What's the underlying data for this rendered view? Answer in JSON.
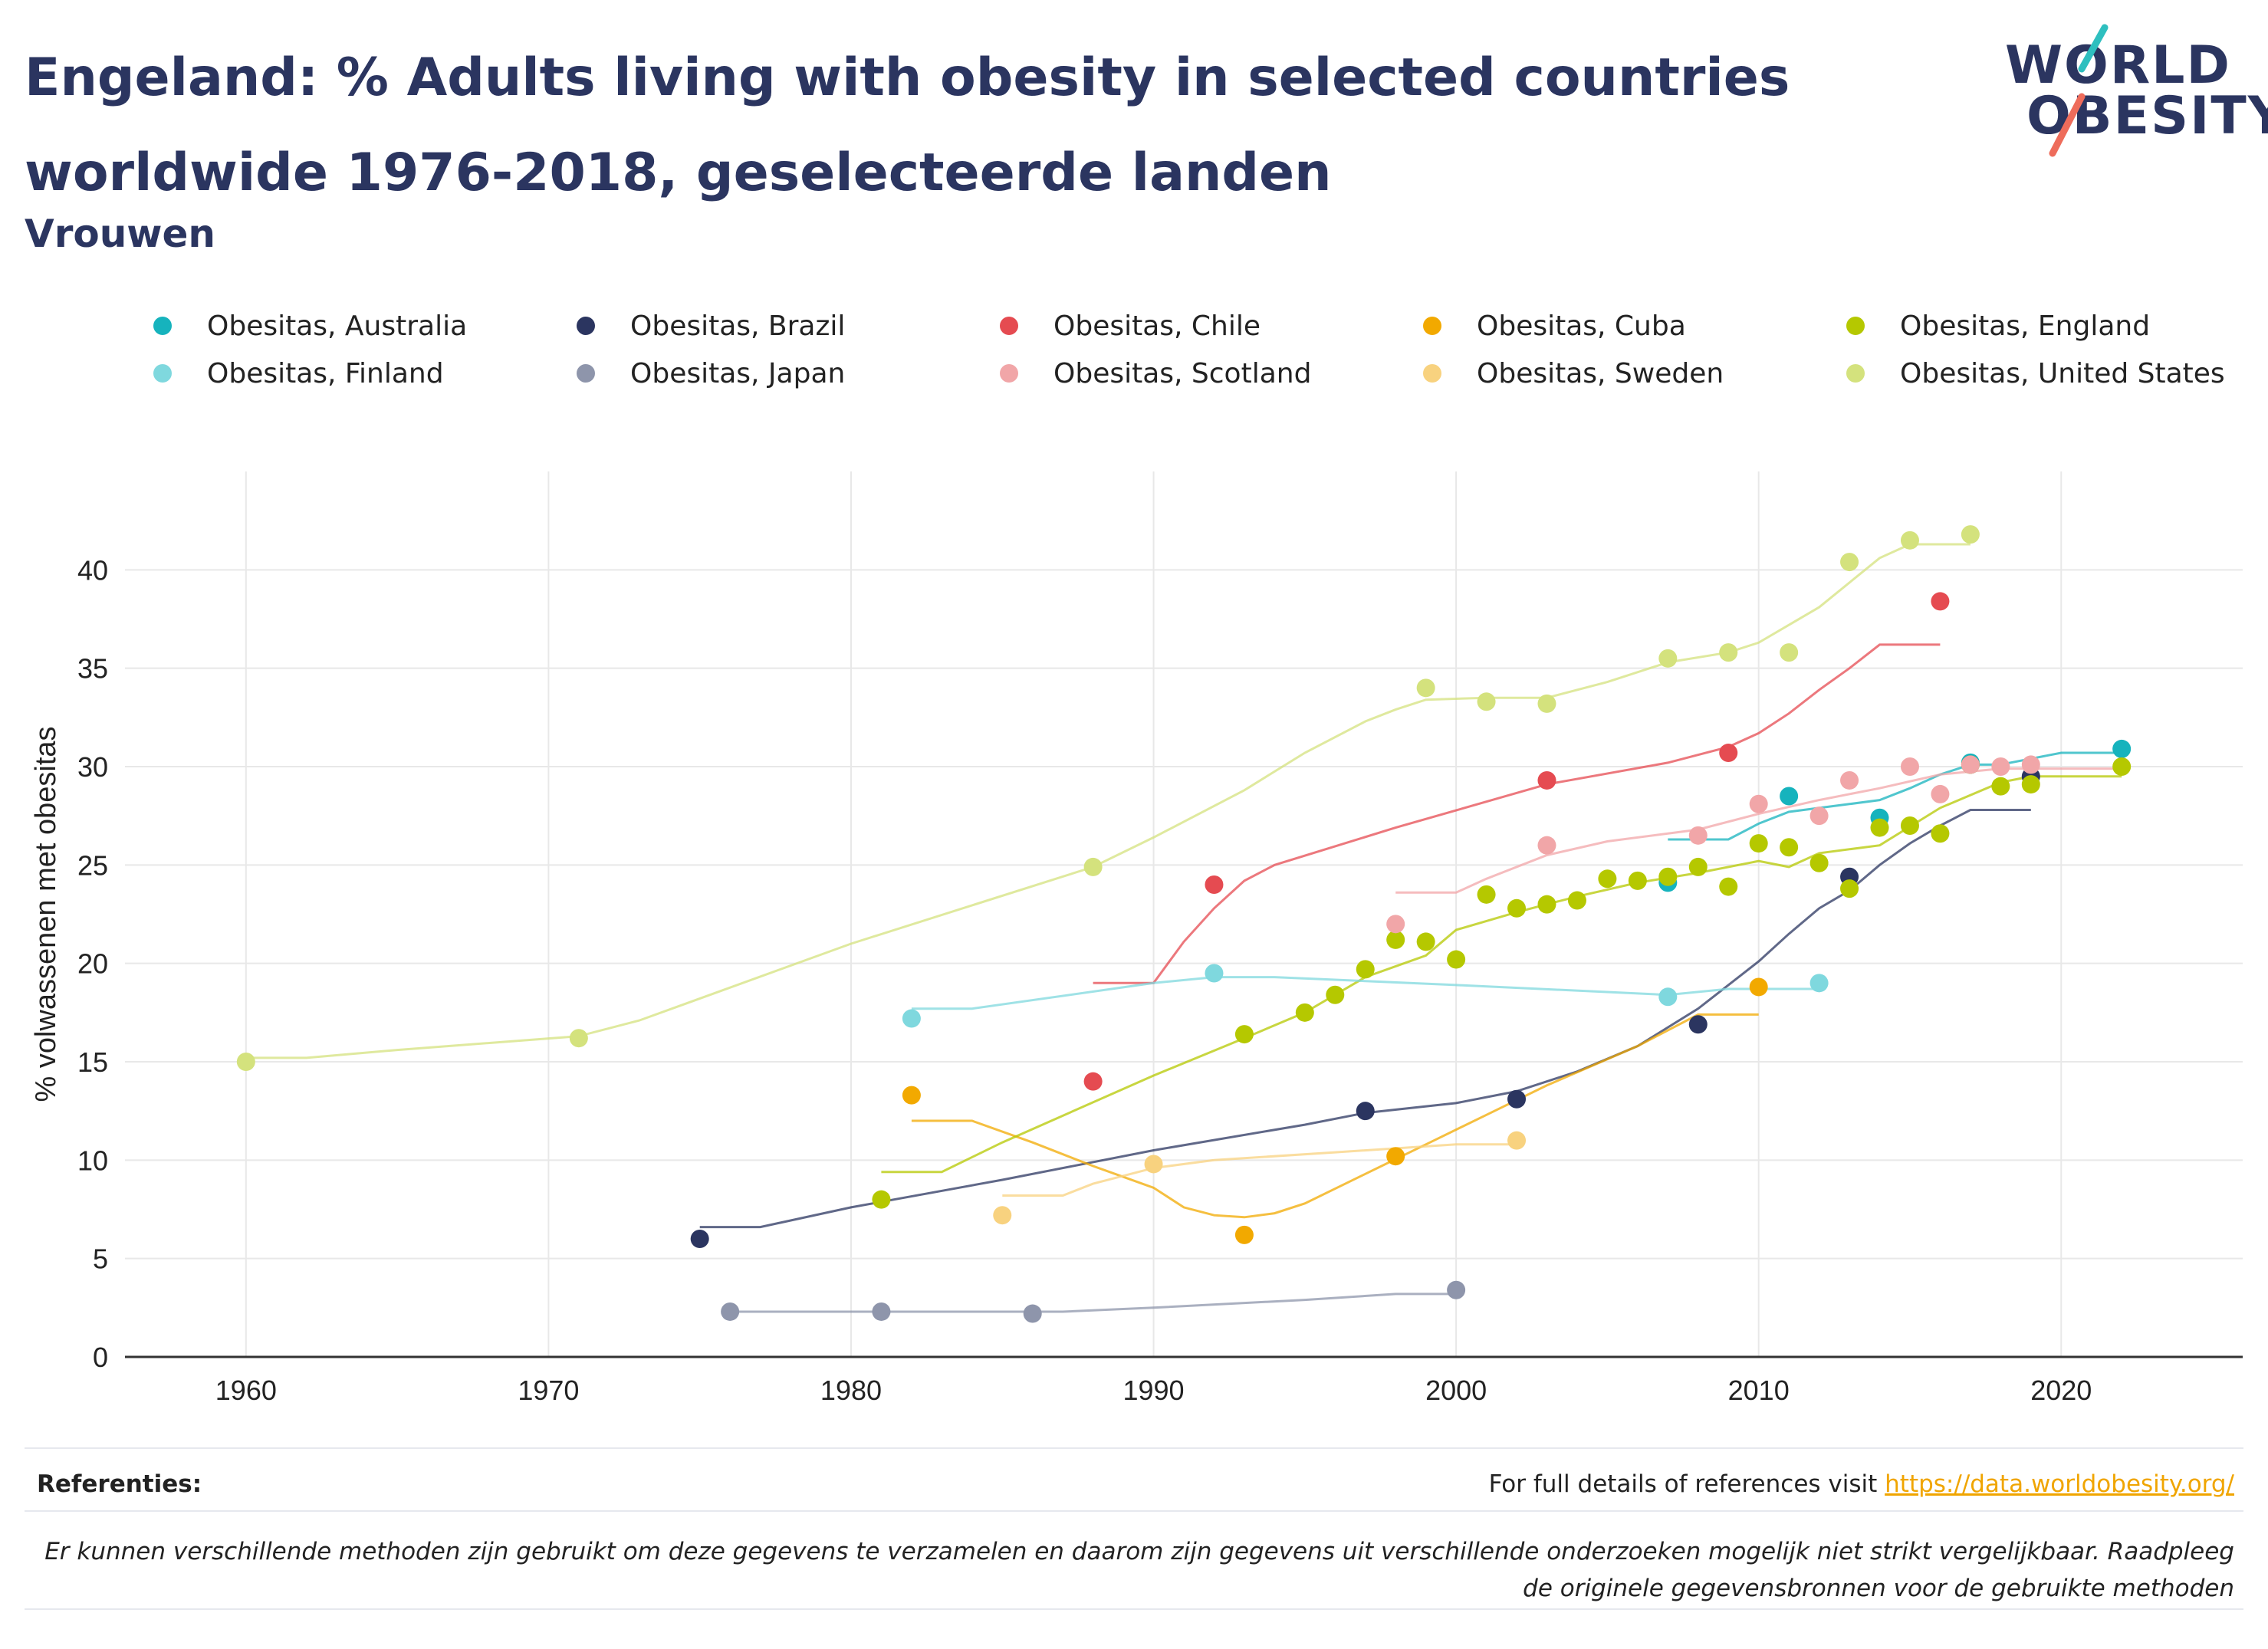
{
  "header": {
    "title": "Engeland: % Adults living with obesity in selected countries worldwide 1976-2018, geselecteerde landen",
    "subtitle": "Vrouwen",
    "logo_line1": "WORLD",
    "logo_line2": "OBESITY"
  },
  "footer": {
    "references_label": "Referenties:",
    "references_text": "For full details of references visit ",
    "references_link": "https://data.worldobesity.org/",
    "disclaimer": "Er kunnen verschillende methoden zijn gebruikt om deze gegevens te verzamelen en daarom zijn gegevens uit verschillende onderzoeken mogelijk niet strikt vergelijkbaar. Raadpleeg de originele gegevensbronnen voor de gebruikte methoden"
  },
  "chart_data": {
    "type": "scatter",
    "title": "Engeland: % Adults living with obesity in selected countries worldwide 1976-2018, geselecteerde landen",
    "subtitle": "Vrouwen",
    "xlabel": "",
    "ylabel": "% volwassenen met obesitas",
    "xlim": [
      1956,
      2026
    ],
    "ylim": [
      0,
      45
    ],
    "xticks": [
      1960,
      1970,
      1980,
      1990,
      2000,
      2010,
      2020
    ],
    "yticks": [
      0,
      5,
      10,
      15,
      20,
      25,
      30,
      35,
      40
    ],
    "grid": true,
    "legend_position": "top",
    "series": [
      {
        "name": "Obesitas, Australia",
        "color": "#16b3bd",
        "points": [
          [
            2007,
            24.1
          ],
          [
            2011,
            28.5
          ],
          [
            2014,
            27.4
          ],
          [
            2017,
            30.2
          ],
          [
            2022,
            30.9
          ]
        ],
        "trend": [
          [
            2007,
            26.3
          ],
          [
            2008,
            26.3
          ],
          [
            2009,
            26.3
          ],
          [
            2010,
            27.1
          ],
          [
            2011,
            27.7
          ],
          [
            2012,
            27.9
          ],
          [
            2013,
            28.1
          ],
          [
            2014,
            28.3
          ],
          [
            2015,
            28.9
          ],
          [
            2016,
            29.6
          ],
          [
            2017,
            30.1
          ],
          [
            2018,
            30.1
          ],
          [
            2019,
            30.4
          ],
          [
            2020,
            30.7
          ],
          [
            2021,
            30.7
          ],
          [
            2022,
            30.7
          ]
        ]
      },
      {
        "name": "Obesitas, Brazil",
        "color": "#2b3560",
        "points": [
          [
            1975,
            6.0
          ],
          [
            1997,
            12.5
          ],
          [
            2002,
            13.1
          ],
          [
            2008,
            16.9
          ],
          [
            2013,
            24.4
          ],
          [
            2017,
            30.1
          ],
          [
            2019,
            29.5
          ]
        ],
        "trend": [
          [
            1975,
            6.6
          ],
          [
            1977,
            6.6
          ],
          [
            1980,
            7.6
          ],
          [
            1985,
            9.0
          ],
          [
            1990,
            10.5
          ],
          [
            1995,
            11.8
          ],
          [
            1997,
            12.4
          ],
          [
            2000,
            12.9
          ],
          [
            2002,
            13.5
          ],
          [
            2004,
            14.5
          ],
          [
            2006,
            15.8
          ],
          [
            2008,
            17.7
          ],
          [
            2010,
            20.1
          ],
          [
            2011,
            21.5
          ],
          [
            2012,
            22.8
          ],
          [
            2013,
            23.7
          ],
          [
            2014,
            25.0
          ],
          [
            2015,
            26.1
          ],
          [
            2016,
            27.0
          ],
          [
            2017,
            27.8
          ],
          [
            2018,
            27.8
          ],
          [
            2019,
            27.8
          ]
        ]
      },
      {
        "name": "Obesitas, Chile",
        "color": "#e54b51",
        "points": [
          [
            1988,
            14.0
          ],
          [
            1992,
            24.0
          ],
          [
            2003,
            29.3
          ],
          [
            2009,
            30.7
          ],
          [
            2016,
            38.4
          ]
        ],
        "trend": [
          [
            1988,
            19.0
          ],
          [
            1990,
            19.0
          ],
          [
            1991,
            21.1
          ],
          [
            1992,
            22.8
          ],
          [
            1993,
            24.2
          ],
          [
            1994,
            25.0
          ],
          [
            1998,
            26.9
          ],
          [
            2003,
            29.1
          ],
          [
            2007,
            30.2
          ],
          [
            2009,
            31.0
          ],
          [
            2010,
            31.7
          ],
          [
            2011,
            32.7
          ],
          [
            2012,
            33.9
          ],
          [
            2013,
            35.0
          ],
          [
            2014,
            36.2
          ],
          [
            2016,
            36.2
          ]
        ]
      },
      {
        "name": "Obesitas, Cuba",
        "color": "#f2a900",
        "points": [
          [
            1982,
            13.3
          ],
          [
            1993,
            6.2
          ],
          [
            1998,
            10.2
          ],
          [
            2010,
            18.8
          ]
        ],
        "trend": [
          [
            1982,
            12.0
          ],
          [
            1984,
            12.0
          ],
          [
            1986,
            10.9
          ],
          [
            1988,
            9.7
          ],
          [
            1990,
            8.6
          ],
          [
            1991,
            7.6
          ],
          [
            1992,
            7.2
          ],
          [
            1993,
            7.1
          ],
          [
            1994,
            7.3
          ],
          [
            1995,
            7.8
          ],
          [
            1997,
            9.3
          ],
          [
            1999,
            10.8
          ],
          [
            2001,
            12.3
          ],
          [
            2003,
            13.8
          ],
          [
            2006,
            15.8
          ],
          [
            2008,
            17.4
          ],
          [
            2010,
            17.4
          ]
        ]
      },
      {
        "name": "Obesitas, England",
        "color": "#b5c800",
        "points": [
          [
            1981,
            8.0
          ],
          [
            1993,
            16.4
          ],
          [
            1995,
            17.5
          ],
          [
            1996,
            18.4
          ],
          [
            1997,
            19.7
          ],
          [
            1998,
            21.2
          ],
          [
            1999,
            21.1
          ],
          [
            2000,
            20.2
          ],
          [
            2001,
            23.5
          ],
          [
            2002,
            22.8
          ],
          [
            2003,
            23.0
          ],
          [
            2004,
            23.2
          ],
          [
            2005,
            24.3
          ],
          [
            2006,
            24.2
          ],
          [
            2007,
            24.4
          ],
          [
            2008,
            24.9
          ],
          [
            2009,
            23.9
          ],
          [
            2010,
            26.1
          ],
          [
            2011,
            25.9
          ],
          [
            2012,
            25.1
          ],
          [
            2013,
            23.8
          ],
          [
            2014,
            26.9
          ],
          [
            2015,
            27.0
          ],
          [
            2016,
            26.6
          ],
          [
            2017,
            30.1
          ],
          [
            2018,
            29.0
          ],
          [
            2019,
            29.1
          ],
          [
            2022,
            30.0
          ]
        ],
        "trend": [
          [
            1981,
            9.4
          ],
          [
            1983,
            9.4
          ],
          [
            1985,
            10.9
          ],
          [
            1990,
            14.3
          ],
          [
            1993,
            16.2
          ],
          [
            1995,
            17.5
          ],
          [
            1997,
            19.3
          ],
          [
            1999,
            20.4
          ],
          [
            2000,
            21.7
          ],
          [
            2002,
            22.6
          ],
          [
            2004,
            23.4
          ],
          [
            2006,
            24.1
          ],
          [
            2008,
            24.6
          ],
          [
            2010,
            25.2
          ],
          [
            2011,
            24.9
          ],
          [
            2012,
            25.6
          ],
          [
            2014,
            26.0
          ],
          [
            2016,
            27.9
          ],
          [
            2018,
            29.2
          ],
          [
            2019,
            29.5
          ],
          [
            2022,
            29.5
          ]
        ]
      },
      {
        "name": "Obesitas, Finland",
        "color": "#7fd8de",
        "points": [
          [
            1982,
            17.2
          ],
          [
            1992,
            19.5
          ],
          [
            2007,
            18.3
          ],
          [
            2012,
            19.0
          ]
        ],
        "trend": [
          [
            1982,
            17.7
          ],
          [
            1984,
            17.7
          ],
          [
            1990,
            19.0
          ],
          [
            1992,
            19.3
          ],
          [
            1994,
            19.3
          ],
          [
            2000,
            18.9
          ],
          [
            2007,
            18.4
          ],
          [
            2009,
            18.7
          ],
          [
            2012,
            18.7
          ]
        ]
      },
      {
        "name": "Obesitas, Japan",
        "color": "#8e95ab",
        "points": [
          [
            1976,
            2.3
          ],
          [
            1981,
            2.3
          ],
          [
            1986,
            2.2
          ],
          [
            2000,
            3.4
          ]
        ],
        "trend": [
          [
            1976,
            2.3
          ],
          [
            1987,
            2.3
          ],
          [
            1990,
            2.5
          ],
          [
            1995,
            2.9
          ],
          [
            1998,
            3.2
          ],
          [
            2000,
            3.2
          ]
        ]
      },
      {
        "name": "Obesitas, Scotland",
        "color": "#f1a6a8",
        "points": [
          [
            1998,
            22.0
          ],
          [
            2003,
            26.0
          ],
          [
            2008,
            26.5
          ],
          [
            2010,
            28.1
          ],
          [
            2012,
            27.5
          ],
          [
            2013,
            29.3
          ],
          [
            2015,
            30.0
          ],
          [
            2016,
            28.6
          ],
          [
            2017,
            30.1
          ],
          [
            2018,
            30.0
          ],
          [
            2019,
            30.1
          ]
        ],
        "trend": [
          [
            1998,
            23.6
          ],
          [
            2000,
            23.6
          ],
          [
            2001,
            24.3
          ],
          [
            2003,
            25.5
          ],
          [
            2005,
            26.2
          ],
          [
            2008,
            26.8
          ],
          [
            2010,
            27.6
          ],
          [
            2012,
            28.3
          ],
          [
            2014,
            28.9
          ],
          [
            2016,
            29.6
          ],
          [
            2018,
            29.9
          ],
          [
            2022,
            29.9
          ]
        ]
      },
      {
        "name": "Obesitas, Sweden",
        "color": "#f8d27f",
        "points": [
          [
            1985,
            7.2
          ],
          [
            1990,
            9.8
          ],
          [
            2002,
            11.0
          ]
        ],
        "trend": [
          [
            1985,
            8.2
          ],
          [
            1987,
            8.2
          ],
          [
            1988,
            8.8
          ],
          [
            1990,
            9.6
          ],
          [
            1992,
            10.0
          ],
          [
            1996,
            10.4
          ],
          [
            2000,
            10.8
          ],
          [
            2002,
            10.8
          ]
        ]
      },
      {
        "name": "Obesitas, United States",
        "color": "#d4e27d",
        "points": [
          [
            1960,
            15.0
          ],
          [
            1971,
            16.2
          ],
          [
            1988,
            24.9
          ],
          [
            1999,
            34.0
          ],
          [
            2001,
            33.3
          ],
          [
            2003,
            33.2
          ],
          [
            2007,
            35.5
          ],
          [
            2009,
            35.8
          ],
          [
            2011,
            35.8
          ],
          [
            2013,
            40.4
          ],
          [
            2015,
            41.5
          ],
          [
            2017,
            41.8
          ]
        ],
        "trend": [
          [
            1960,
            15.2
          ],
          [
            1962,
            15.2
          ],
          [
            1965,
            15.6
          ],
          [
            1971,
            16.3
          ],
          [
            1973,
            17.1
          ],
          [
            1980,
            21.0
          ],
          [
            1988,
            24.9
          ],
          [
            1990,
            26.4
          ],
          [
            1993,
            28.8
          ],
          [
            1995,
            30.7
          ],
          [
            1997,
            32.3
          ],
          [
            1998,
            32.9
          ],
          [
            1999,
            33.4
          ],
          [
            2001,
            33.5
          ],
          [
            2003,
            33.5
          ],
          [
            2005,
            34.3
          ],
          [
            2007,
            35.3
          ],
          [
            2009,
            35.8
          ],
          [
            2010,
            36.3
          ],
          [
            2012,
            38.1
          ],
          [
            2014,
            40.6
          ],
          [
            2015,
            41.3
          ],
          [
            2017,
            41.3
          ]
        ]
      }
    ]
  }
}
